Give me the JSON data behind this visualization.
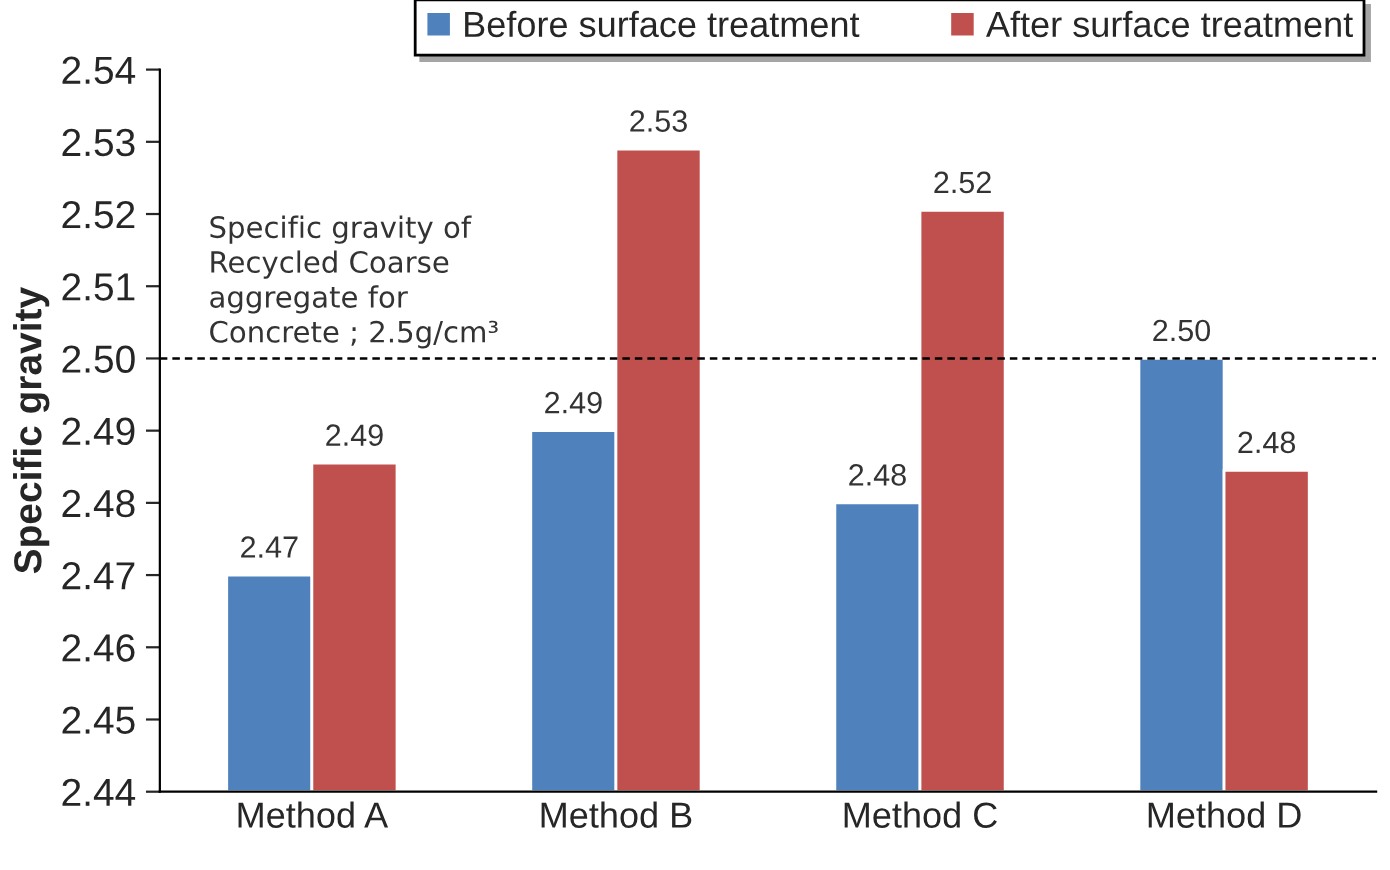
{
  "chart_data": {
    "type": "bar",
    "ylabel": "Specific gravity",
    "categories": [
      "Method A",
      "Method B",
      "Method C",
      "Method D"
    ],
    "series": [
      {
        "name": "Before surface treatment",
        "color": "#4f81bd",
        "values": [
          2.47,
          2.49,
          2.48,
          2.5
        ],
        "value_labels": [
          "2.47",
          "2.49",
          "2.48",
          "2.50"
        ]
      },
      {
        "name": "After surface treatment",
        "color": "#c0504d",
        "values": [
          2.4855,
          2.529,
          2.5205,
          2.4845
        ],
        "value_labels": [
          "2.49",
          "2.53",
          "2.52",
          "2.48"
        ]
      }
    ],
    "ylim": [
      2.44,
      2.54
    ],
    "yticks": [
      "2.44",
      "2.45",
      "2.46",
      "2.47",
      "2.48",
      "2.49",
      "2.50",
      "2.51",
      "2.52",
      "2.53",
      "2.54"
    ],
    "ref_lines": [
      {
        "axis": "y",
        "value": 2.5,
        "label": "Specific gravity of\nRecycled Coarse\naggregate for\nConcrete ; 2.5g/cm³",
        "color": "#000000",
        "line_style": "dashed"
      }
    ],
    "grid": false,
    "legend": "top"
  }
}
